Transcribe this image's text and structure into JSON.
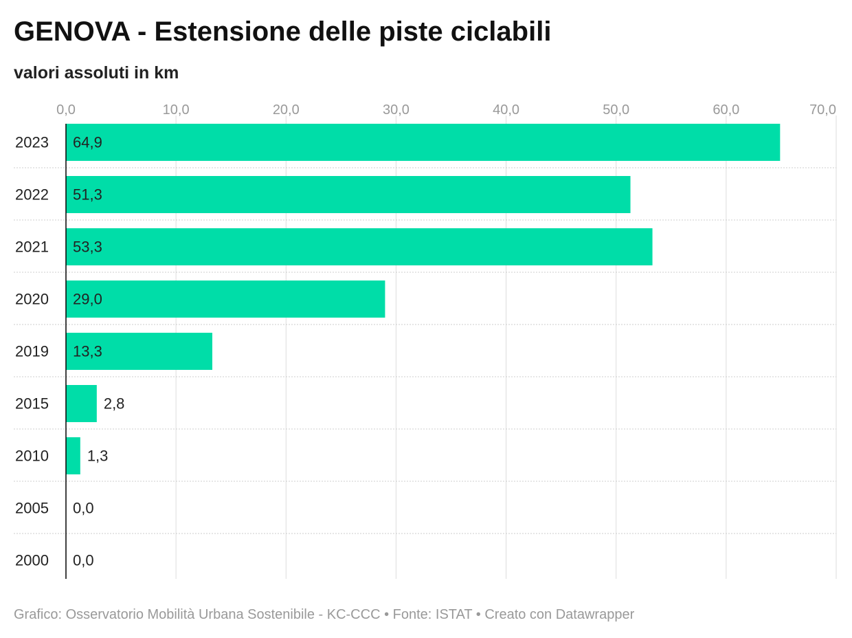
{
  "header": {
    "title": "GENOVA - Estensione delle piste ciclabili",
    "subtitle": "valori assoluti in km"
  },
  "footer": {
    "credit": "Grafico: Osservatorio Mobilità Urbana Sostenibile - KC-CCC • Fonte: ISTAT • Creato con Datawrapper"
  },
  "colors": {
    "bar": "#00DDA8",
    "grid": "#dddddd",
    "tick_label": "#999999",
    "row_separator": "#cccccc",
    "baseline": "#000000"
  },
  "chart_data": {
    "type": "bar",
    "orientation": "horizontal",
    "title": "GENOVA - Estensione delle piste ciclabili",
    "subtitle": "valori assoluti in km",
    "categories": [
      "2023",
      "2022",
      "2021",
      "2020",
      "2019",
      "2015",
      "2010",
      "2005",
      "2000"
    ],
    "values": [
      64.9,
      51.3,
      53.3,
      29.0,
      13.3,
      2.8,
      1.3,
      0.0,
      0.0
    ],
    "value_labels": [
      "64,9",
      "51,3",
      "53,3",
      "29,0",
      "13,3",
      "2,8",
      "1,3",
      "0,0",
      "0,0"
    ],
    "xlim": [
      0,
      70
    ],
    "x_ticks": [
      0,
      10,
      20,
      30,
      40,
      50,
      60,
      70
    ],
    "x_tick_labels": [
      "0,0",
      "10,0",
      "20,0",
      "30,0",
      "40,0",
      "50,0",
      "60,0",
      "70,0"
    ],
    "x_axis_position": "top",
    "grid": true,
    "legend": "none"
  }
}
